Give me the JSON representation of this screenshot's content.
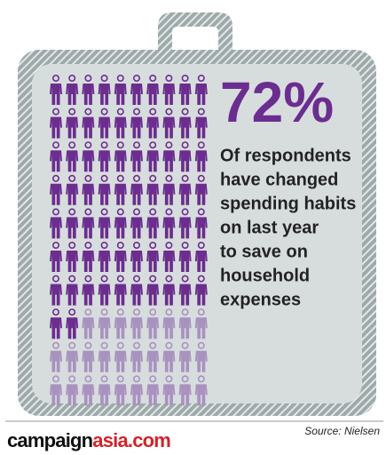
{
  "chart_data": {
    "type": "waffle",
    "values": [
      72
    ],
    "value_labels": [
      "72%"
    ],
    "color": "#6b2d8f",
    "empty_color": "#a992bf",
    "description": [
      "Of respondents",
      "have changed",
      "spending habits",
      "on last year",
      "to save on",
      "household",
      "expenses"
    ],
    "brand": {
      "first": "campaign",
      "second": "asia.com"
    },
    "source": "Source: Nielsen"
  }
}
